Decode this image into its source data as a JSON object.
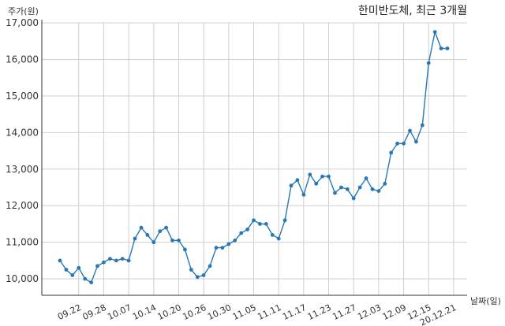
{
  "chart_data": {
    "type": "line",
    "title": "한미반도체, 최근 3개월",
    "ylabel": "주가(원)",
    "xlabel": "날짜(일)",
    "ylim": [
      9550,
      17000
    ],
    "yticks": [
      10000,
      11000,
      12000,
      13000,
      14000,
      15000,
      16000,
      17000
    ],
    "ytick_labels": [
      "10,000",
      "11,000",
      "12,000",
      "13,000",
      "14,000",
      "15,000",
      "16,000",
      "17,000"
    ],
    "xtick_labels": [
      "09.22",
      "09.28",
      "10.07",
      "10.14",
      "10.20",
      "10.26",
      "10.30",
      "11.05",
      "11.11",
      "11.17",
      "11.23",
      "11.27",
      "12.03",
      "12.09",
      "12.15",
      "20.12.21"
    ],
    "xtick_positions": [
      3,
      7,
      11,
      15,
      19,
      23,
      27,
      31,
      35,
      39,
      43,
      47,
      51,
      55,
      59,
      63
    ],
    "grid": true,
    "color": "#2878b5",
    "series": [
      {
        "values": [
          10500,
          10250,
          10100,
          10300,
          10000,
          9900,
          10350,
          10450,
          10550,
          10500,
          10550,
          10500,
          11100,
          11400,
          11200,
          11000,
          11300,
          11400,
          11050,
          11050,
          10800,
          10250,
          10050,
          10100,
          10350,
          10850,
          10850,
          10950,
          11050,
          11250,
          11350,
          11600,
          11500,
          11500,
          11200,
          11100,
          11600,
          12550,
          12700,
          12300,
          12850,
          12600,
          12800,
          12800,
          12350,
          12500,
          12450,
          12200,
          12500,
          12750,
          12450,
          12400,
          12600,
          13450,
          13700,
          13700,
          14050,
          13750,
          14200,
          15900,
          16750,
          16300,
          16300
        ]
      }
    ]
  }
}
